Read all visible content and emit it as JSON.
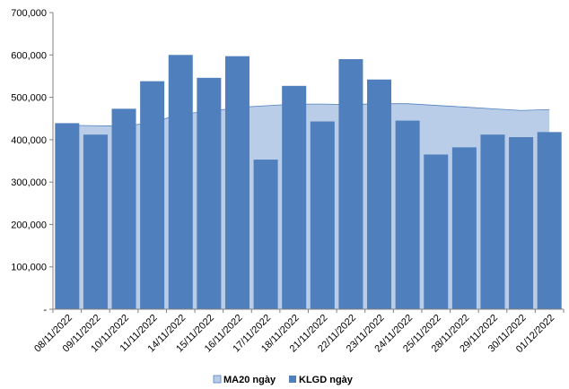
{
  "chart_data": {
    "type": "bar",
    "categories": [
      "08/11/2022",
      "09/11/2022",
      "10/11/2022",
      "11/11/2022",
      "14/11/2022",
      "15/11/2022",
      "16/11/2022",
      "17/11/2022",
      "18/11/2022",
      "21/11/2022",
      "22/11/2022",
      "23/11/2022",
      "24/11/2022",
      "25/11/2022",
      "28/11/2022",
      "29/11/2022",
      "30/11/2022",
      "01/12/2022"
    ],
    "series": [
      {
        "name": "MA20 ngày",
        "type": "area",
        "color": "#b9cde8",
        "line_color": "#4f81bd",
        "values": [
          434000,
          433000,
          432000,
          440000,
          461000,
          466000,
          476000,
          480000,
          484000,
          484000,
          483000,
          485000,
          485000,
          481000,
          477000,
          473000,
          469000,
          471000
        ]
      },
      {
        "name": "KLGD ngày",
        "type": "bar",
        "color": "#4f7fbc",
        "values": [
          439000,
          412000,
          473000,
          538000,
          600000,
          546000,
          597000,
          353000,
          527000,
          443000,
          590000,
          542000,
          445000,
          365000,
          382000,
          412000,
          406000,
          418000
        ]
      }
    ],
    "y_ticks": [
      "-",
      "100,000",
      "200,000",
      "300,000",
      "400,000",
      "500,000",
      "600,000",
      "700,000"
    ],
    "ylim": [
      0,
      700000
    ],
    "grid": false,
    "legend_position": "bottom"
  }
}
